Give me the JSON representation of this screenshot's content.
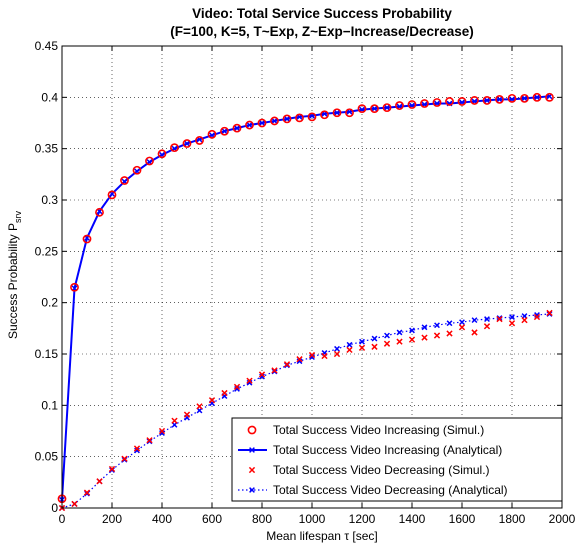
{
  "chart_data": {
    "type": "line",
    "title_line1": "Video: Total Service Success Probability",
    "title_line2": "(F=100, K=5, T~Exp, Z~Exp−Increase/Decrease)",
    "xlabel": "Mean lifespan τ [sec]",
    "ylabel_main": "Success Probability  P",
    "ylabel_sub": "srv",
    "xlim": [
      0,
      2000
    ],
    "ylim": [
      0,
      0.45
    ],
    "xticks": [
      0,
      200,
      400,
      600,
      800,
      1000,
      1200,
      1400,
      1600,
      1800,
      2000
    ],
    "yticks": [
      0,
      0.05,
      0.1,
      0.15,
      0.2,
      0.25,
      0.3,
      0.35,
      0.4,
      0.45
    ],
    "xtick_labels": [
      "0",
      "200",
      "400",
      "600",
      "800",
      "1000",
      "1200",
      "1400",
      "1600",
      "1800",
      "2000"
    ],
    "ytick_labels": [
      "0",
      "0.05",
      "0.1",
      "0.15",
      "0.2",
      "0.25",
      "0.3",
      "0.35",
      "0.4",
      "0.45"
    ],
    "grid": true,
    "legend_position": "bottom-right",
    "x": [
      0,
      50,
      100,
      150,
      200,
      250,
      300,
      350,
      400,
      450,
      500,
      550,
      600,
      650,
      700,
      750,
      800,
      850,
      900,
      950,
      1000,
      1050,
      1100,
      1150,
      1200,
      1250,
      1300,
      1350,
      1400,
      1450,
      1500,
      1550,
      1600,
      1650,
      1700,
      1750,
      1800,
      1850,
      1900,
      1950
    ],
    "series": [
      {
        "name": "Total Success Video Increasing (Simul.)",
        "color": "#ff0000",
        "style": "circle-markers",
        "values": [
          0.009,
          0.215,
          0.262,
          0.288,
          0.305,
          0.319,
          0.329,
          0.338,
          0.345,
          0.351,
          0.355,
          0.358,
          0.364,
          0.367,
          0.37,
          0.373,
          0.375,
          0.377,
          0.379,
          0.38,
          0.381,
          0.383,
          0.385,
          0.385,
          0.389,
          0.389,
          0.39,
          0.392,
          0.393,
          0.394,
          0.395,
          0.396,
          0.396,
          0.397,
          0.397,
          0.398,
          0.399,
          0.399,
          0.4,
          0.4
        ]
      },
      {
        "name": "Total Success Video Increasing (Analytical)",
        "color": "#0000ff",
        "style": "solid-line-x",
        "values": [
          0.008,
          0.214,
          0.263,
          0.289,
          0.306,
          0.318,
          0.328,
          0.337,
          0.344,
          0.35,
          0.355,
          0.359,
          0.363,
          0.367,
          0.37,
          0.373,
          0.375,
          0.377,
          0.379,
          0.381,
          0.382,
          0.384,
          0.385,
          0.386,
          0.388,
          0.389,
          0.39,
          0.391,
          0.392,
          0.393,
          0.394,
          0.394,
          0.395,
          0.396,
          0.397,
          0.398,
          0.398,
          0.399,
          0.4,
          0.401
        ]
      },
      {
        "name": "Total Success Video Decreasing (Simul.)",
        "color": "#ff0000",
        "style": "x-markers",
        "values": [
          0.0,
          0.004,
          0.015,
          0.026,
          0.038,
          0.048,
          0.058,
          0.066,
          0.075,
          0.085,
          0.091,
          0.099,
          0.105,
          0.112,
          0.118,
          0.124,
          0.13,
          0.134,
          0.14,
          0.145,
          0.149,
          0.148,
          0.15,
          0.154,
          0.156,
          0.157,
          0.16,
          0.162,
          0.164,
          0.166,
          0.168,
          0.17,
          0.176,
          0.171,
          0.177,
          0.184,
          0.18,
          0.183,
          0.186,
          0.19
        ]
      },
      {
        "name": "Total Success Video Decreasing (Analytical)",
        "color": "#0000ff",
        "style": "dotted-line-x",
        "values": [
          0.0,
          0.004,
          0.014,
          0.026,
          0.037,
          0.047,
          0.056,
          0.065,
          0.073,
          0.081,
          0.088,
          0.095,
          0.102,
          0.109,
          0.116,
          0.122,
          0.128,
          0.133,
          0.139,
          0.143,
          0.147,
          0.151,
          0.155,
          0.159,
          0.162,
          0.165,
          0.168,
          0.171,
          0.173,
          0.176,
          0.178,
          0.18,
          0.181,
          0.183,
          0.184,
          0.185,
          0.186,
          0.187,
          0.188,
          0.189
        ]
      }
    ]
  }
}
